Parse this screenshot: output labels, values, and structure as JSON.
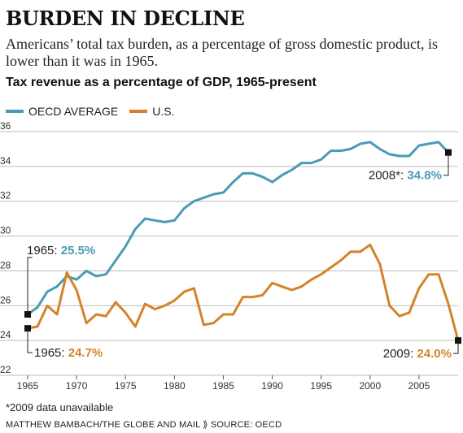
{
  "headline": "BURDEN IN DECLINE",
  "deck": "Americans’ total tax burden, as a percentage of gross domestic product, is lower than it was in 1965.",
  "chart_title": "Tax revenue as a percentage of GDP, 1965-present",
  "footnote": "*2009 data unavailable",
  "credit": "MATTHEW BAMBACH/THE GLOBE AND MAIL ⟫ SOURCE: OECD",
  "colors": {
    "oecd": "#4a9bb5",
    "us": "#d4832b",
    "grid": "#bbbbbb"
  },
  "chart_data": {
    "type": "line",
    "title": "Tax revenue as a percentage of GDP, 1965-present",
    "xlabel": "",
    "ylabel": "",
    "xlim": [
      1964,
      2009
    ],
    "ylim": [
      22,
      36
    ],
    "x_ticks": [
      1965,
      1970,
      1975,
      1980,
      1985,
      1990,
      1995,
      2000,
      2005
    ],
    "y_ticks": [
      22,
      24,
      26,
      28,
      30,
      32,
      34,
      36
    ],
    "grid": "horizontal",
    "legend": "top-left",
    "series": [
      {
        "name": "OECD AVERAGE",
        "color": "#4a9bb5",
        "x": [
          1965,
          1966,
          1967,
          1968,
          1969,
          1970,
          1971,
          1972,
          1973,
          1974,
          1975,
          1976,
          1977,
          1978,
          1979,
          1980,
          1981,
          1982,
          1983,
          1984,
          1985,
          1986,
          1987,
          1988,
          1989,
          1990,
          1991,
          1992,
          1993,
          1994,
          1995,
          1996,
          1997,
          1998,
          1999,
          2000,
          2001,
          2002,
          2003,
          2004,
          2005,
          2006,
          2007,
          2008
        ],
        "y": [
          25.5,
          25.9,
          26.8,
          27.1,
          27.7,
          27.5,
          28.0,
          27.7,
          27.8,
          28.6,
          29.4,
          30.4,
          31.0,
          30.9,
          30.8,
          30.9,
          31.6,
          32.0,
          32.2,
          32.4,
          32.5,
          33.1,
          33.6,
          33.6,
          33.4,
          33.1,
          33.5,
          33.8,
          34.2,
          34.2,
          34.4,
          34.9,
          34.9,
          35.0,
          35.3,
          35.4,
          35.0,
          34.7,
          34.6,
          34.6,
          35.2,
          35.3,
          35.4,
          34.8
        ]
      },
      {
        "name": "U.S.",
        "color": "#d4832b",
        "x": [
          1965,
          1966,
          1967,
          1968,
          1969,
          1970,
          1971,
          1972,
          1973,
          1974,
          1975,
          1976,
          1977,
          1978,
          1979,
          1980,
          1981,
          1982,
          1983,
          1984,
          1985,
          1986,
          1987,
          1988,
          1989,
          1990,
          1991,
          1992,
          1993,
          1994,
          1995,
          1996,
          1997,
          1998,
          1999,
          2000,
          2001,
          2002,
          2003,
          2004,
          2005,
          2006,
          2007,
          2008,
          2009
        ],
        "y": [
          24.7,
          24.8,
          26.0,
          25.5,
          27.9,
          26.9,
          25.0,
          25.5,
          25.4,
          26.2,
          25.6,
          24.8,
          26.1,
          25.8,
          26.0,
          26.3,
          26.8,
          27.0,
          24.9,
          25.0,
          25.5,
          25.5,
          26.5,
          26.5,
          26.6,
          27.3,
          27.1,
          26.9,
          27.1,
          27.5,
          27.8,
          28.2,
          28.6,
          29.1,
          29.1,
          29.5,
          28.4,
          26.0,
          25.4,
          25.6,
          27.0,
          27.8,
          27.8,
          26.1,
          24.0
        ]
      }
    ],
    "annotations": [
      {
        "label": "1965: ",
        "value": "25.5%",
        "series": "OECD AVERAGE",
        "x": 1965,
        "y": 25.5
      },
      {
        "label": "2008*: ",
        "value": "34.8%",
        "series": "OECD AVERAGE",
        "x": 2008,
        "y": 34.8
      },
      {
        "label": "1965: ",
        "value": "24.7%",
        "series": "U.S.",
        "x": 1965,
        "y": 24.7
      },
      {
        "label": "2009: ",
        "value": "24.0%",
        "series": "U.S.",
        "x": 2009,
        "y": 24.0
      }
    ]
  }
}
